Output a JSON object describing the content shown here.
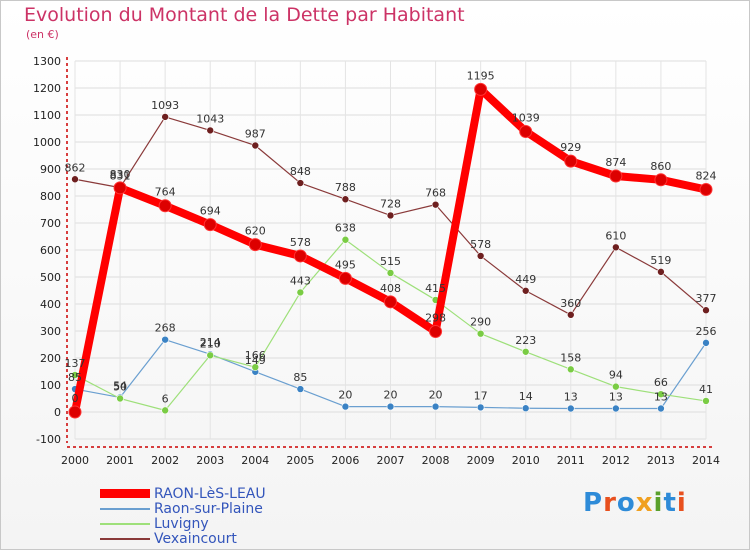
{
  "title": "Evolution du Montant de la Dette par Habitant",
  "subtitle": "(en €)",
  "logo": {
    "text": "Proxiti",
    "colors": [
      "#2e8bd8",
      "#e8501e",
      "#2e8bd8",
      "#f0a020",
      "#5aa02c",
      "#2e8bd8",
      "#e8501e"
    ]
  },
  "chart_data": {
    "type": "line",
    "title": "Evolution du Montant de la Dette par Habitant",
    "ylabel": "(en €)",
    "xlabel": "",
    "x": [
      "2000",
      "2001",
      "2002",
      "2003",
      "2004",
      "2005",
      "2006",
      "2007",
      "2008",
      "2009",
      "2010",
      "2011",
      "2012",
      "2013",
      "2014"
    ],
    "ylim": [
      -100,
      1300
    ],
    "yticks": [
      -100,
      0,
      100,
      200,
      300,
      400,
      500,
      600,
      700,
      800,
      900,
      1000,
      1100,
      1200,
      1300
    ],
    "grid": true,
    "legend": "bottom-left",
    "series": [
      {
        "name": "RAON-LèS-LEAU",
        "color": "#ff0000",
        "marker": "#dd0000",
        "width": 8,
        "radius": 6,
        "values": [
          0,
          830,
          764,
          694,
          620,
          578,
          495,
          408,
          298,
          1195,
          1039,
          929,
          874,
          860,
          824
        ]
      },
      {
        "name": "Raon-sur-Plaine",
        "color": "#6a9fd0",
        "marker": "#3a82c4",
        "width": 1.2,
        "radius": 3.5,
        "values": [
          85,
          54,
          268,
          214,
          149,
          85,
          20,
          20,
          20,
          17,
          14,
          13,
          13,
          13,
          256
        ]
      },
      {
        "name": "Luvigny",
        "color": "#9ee07a",
        "marker": "#7acc44",
        "width": 1.2,
        "radius": 3.5,
        "values": [
          137,
          50,
          6,
          210,
          166,
          443,
          638,
          515,
          415,
          290,
          223,
          158,
          94,
          66,
          41
        ]
      },
      {
        "name": "Vexaincourt",
        "color": "#8a3a3a",
        "marker": "#6e1f1f",
        "width": 1.2,
        "radius": 3.5,
        "values": [
          862,
          831,
          1093,
          1043,
          987,
          848,
          788,
          728,
          768,
          578,
          449,
          360,
          610,
          519,
          377
        ]
      }
    ]
  }
}
